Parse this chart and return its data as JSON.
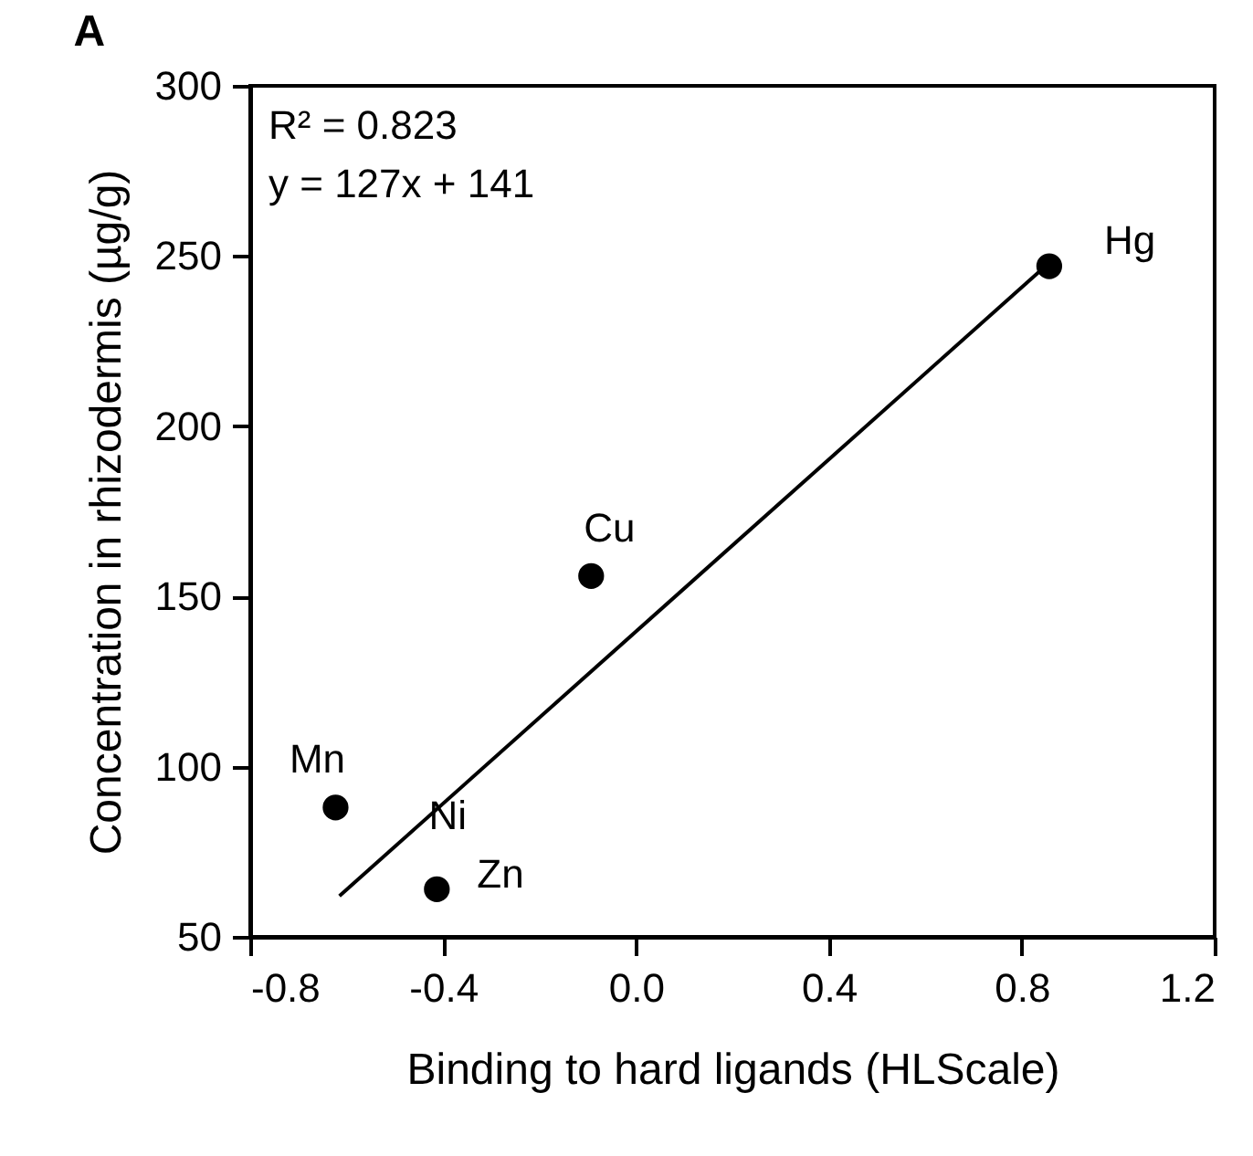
{
  "chart_data": {
    "type": "scatter",
    "title": "A",
    "xlabel": "Binding to hard ligands (HLScale)",
    "ylabel": "Concentration in rhizodermis (µg/g)",
    "xlim": [
      -0.8,
      1.2
    ],
    "xticks": [
      {
        "value": -0.8,
        "label": "-0.8"
      },
      {
        "value": -0.4,
        "label": "-0.4"
      },
      {
        "value": 0.0,
        "label": "0.0"
      },
      {
        "value": 0.4,
        "label": "0.4"
      },
      {
        "value": 0.8,
        "label": "0.8"
      },
      {
        "value": 1.2,
        "label": "1.2"
      }
    ],
    "ylim": [
      50,
      300
    ],
    "yticks": [
      50,
      100,
      150,
      200,
      250,
      300
    ],
    "grid": false,
    "marker": "circle",
    "series": [
      {
        "color": "#000000",
        "x": [
          -0.623,
          -0.413,
          -0.093,
          0.857
        ],
        "values": [
          88,
          64,
          156,
          247
        ]
      },
      {
        "type": "line",
        "color": "#000000",
        "line_style": "solid",
        "marker": "none",
        "x": [
          -0.615,
          0.857
        ],
        "values": [
          62,
          248
        ]
      }
    ],
    "annotations": [
      "R² = 0.823",
      "y = 127x + 141",
      {
        "text": "Mn",
        "x": -0.623,
        "y": 88
      },
      {
        "text": "Ni",
        "x": -0.413,
        "y": 64
      },
      {
        "text": "Zn",
        "x": -0.413,
        "y": 64
      },
      {
        "text": "Cu",
        "x": -0.093,
        "y": 156
      },
      {
        "text": "Hg",
        "x": 0.857,
        "y": 247
      }
    ]
  }
}
